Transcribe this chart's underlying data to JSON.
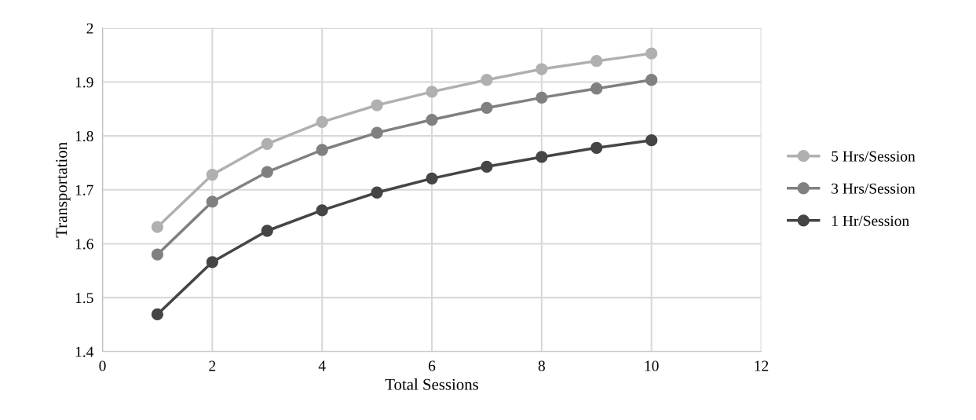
{
  "chart_data": {
    "type": "line",
    "xlabel": "Total Sessions",
    "ylabel": "Transportation",
    "x": [
      1,
      2,
      3,
      4,
      5,
      6,
      7,
      8,
      9,
      10
    ],
    "series": [
      {
        "name": "5 Hrs/Session",
        "color": "#b0b0b0",
        "values": [
          1.631,
          1.728,
          1.785,
          1.826,
          1.857,
          1.882,
          1.904,
          1.924,
          1.939,
          1.953
        ]
      },
      {
        "name": "3 Hrs/Session",
        "color": "#808080",
        "values": [
          1.58,
          1.678,
          1.733,
          1.774,
          1.806,
          1.83,
          1.852,
          1.871,
          1.888,
          1.904
        ]
      },
      {
        "name": "1 Hr/Session",
        "color": "#454545",
        "values": [
          1.469,
          1.566,
          1.624,
          1.662,
          1.695,
          1.721,
          1.743,
          1.761,
          1.778,
          1.792
        ]
      }
    ],
    "xlim": [
      0,
      12
    ],
    "xticks": [
      0,
      2,
      4,
      6,
      8,
      10,
      12
    ],
    "ylim": [
      1.4,
      2
    ],
    "yticks": [
      1.4,
      1.5,
      1.6,
      1.7,
      1.8,
      1.9,
      2
    ],
    "grid": true,
    "legend": "right",
    "marker": "circle",
    "line_style": "solid"
  }
}
